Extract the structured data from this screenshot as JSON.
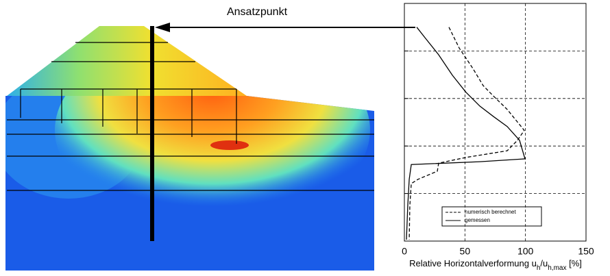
{
  "chart_data": {
    "type": "line",
    "annotation": "Ansatzpunkt",
    "xlabel": [
      "Relative Horizontalverformung u",
      "h",
      "/u",
      "h,max",
      " [%]"
    ],
    "xlim": [
      0,
      150
    ],
    "xticks": [
      0,
      50,
      100,
      150
    ],
    "ylim": [
      0,
      5
    ],
    "yticks": [
      1,
      2,
      3,
      4
    ],
    "grid": true,
    "legend": "lower-center",
    "series": [
      {
        "name": "numerisch berechnet",
        "color": "#000000",
        "dash": true,
        "x": [
          36.8,
          45.3,
          56.6,
          65.1,
          73.6,
          84.9,
          99,
          93.4,
          84.9,
          50.9,
          28.3,
          27.2,
          11.3,
          5.7,
          4.5,
          4
        ],
        "y": [
          0.5,
          0.94,
          1.37,
          1.73,
          1.95,
          2.23,
          2.67,
          2.88,
          3.1,
          3.24,
          3.36,
          3.53,
          3.7,
          3.79,
          4.25,
          4.97
        ]
      },
      {
        "name": "gemessen",
        "color": "#000000",
        "dash": false,
        "x": [
          10.2,
          17,
          28.3,
          39.6,
          50.9,
          62.3,
          73.6,
          84.9,
          95.1,
          99.6,
          62.3,
          5.7,
          4,
          2.8,
          1.7
        ],
        "y": [
          0.5,
          0.72,
          1.08,
          1.51,
          1.87,
          2.16,
          2.38,
          2.59,
          2.88,
          3.27,
          3.33,
          3.39,
          3.7,
          4.25,
          4.97
        ]
      }
    ]
  }
}
